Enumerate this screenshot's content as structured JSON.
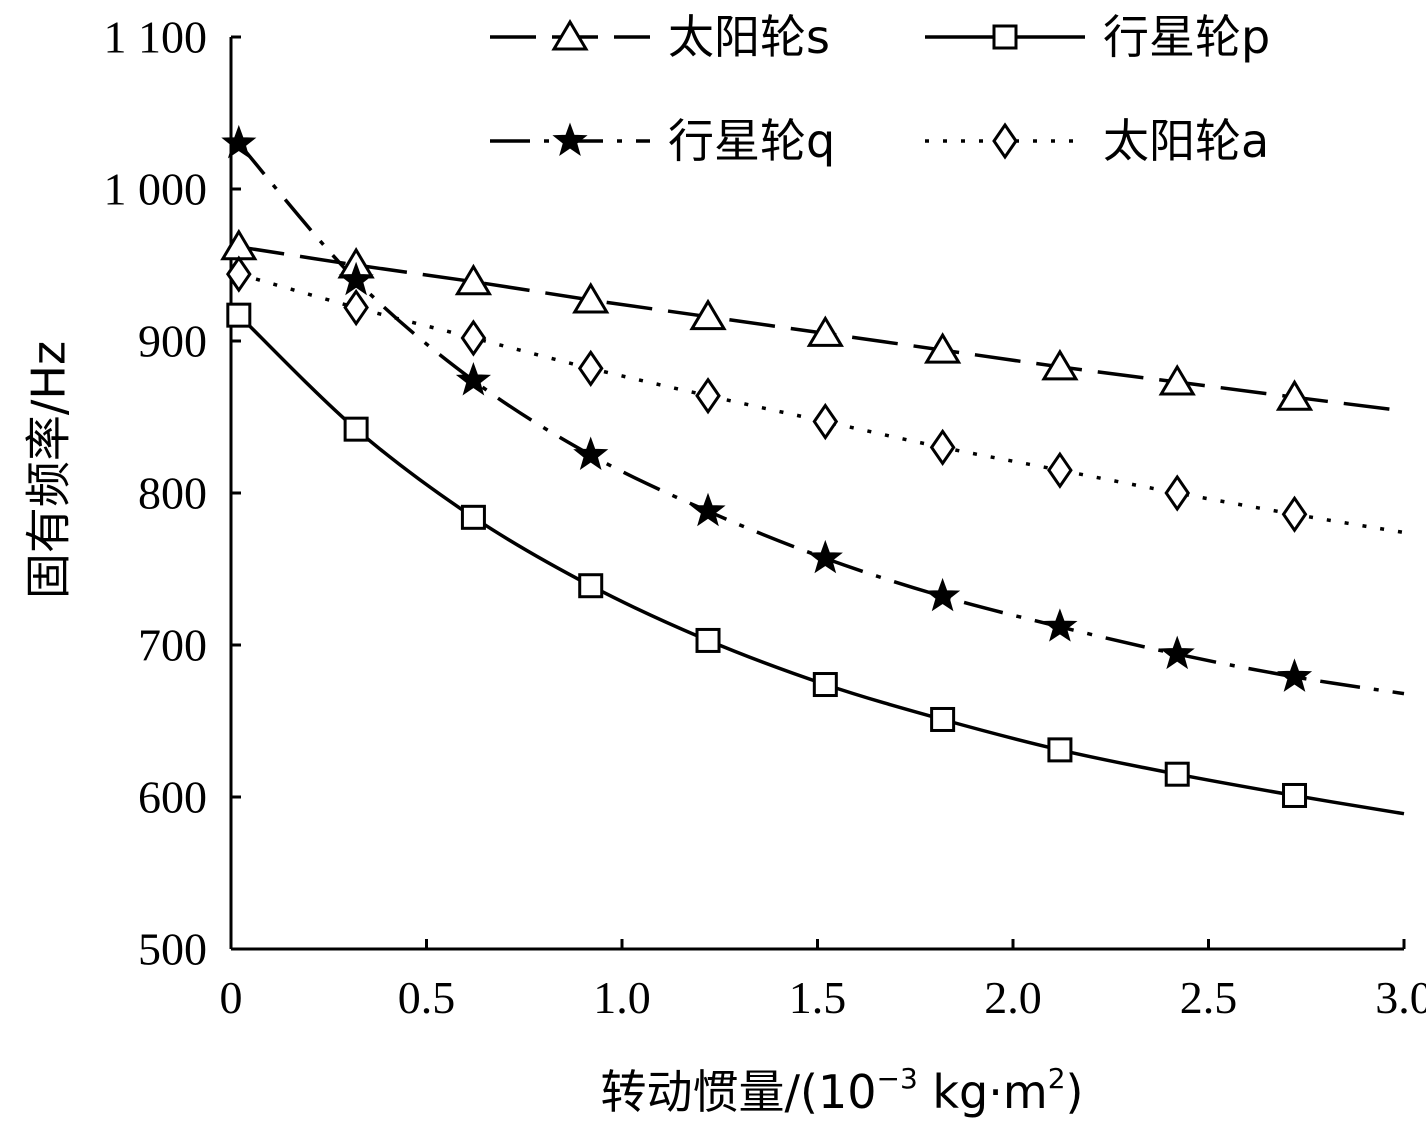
{
  "chart_data": {
    "type": "line",
    "title": "",
    "xlabel": "转动惯量/(10",
    "xlabel_sup": "−3",
    "xlabel_mid": " kg·m",
    "xlabel_sup2": "2",
    "xlabel_end": ")",
    "ylabel": "固有频率/Hz",
    "xlim": [
      0,
      3.0
    ],
    "ylim": [
      500,
      1100
    ],
    "x_ticks": [
      0,
      0.5,
      1.0,
      1.5,
      2.0,
      2.5,
      3.0
    ],
    "x_tick_labels": [
      "0",
      "0.5",
      "1.0",
      "1.5",
      "2.0",
      "2.5",
      "3.0"
    ],
    "y_ticks": [
      500,
      600,
      700,
      800,
      900,
      1000,
      1100
    ],
    "y_tick_labels": [
      "500",
      "600",
      "700",
      "800",
      "900",
      "1 000",
      "1 100"
    ],
    "legend_position": "top",
    "marker_x": [
      0.02,
      0.32,
      0.62,
      0.92,
      1.22,
      1.52,
      1.82,
      2.12,
      2.42,
      2.72
    ],
    "series": [
      {
        "name": "太阳轮s",
        "marker": "triangle",
        "line": "longdash",
        "marker_values": [
          962,
          950,
          939,
          927,
          916,
          905,
          894,
          883,
          873,
          863
        ],
        "end_value": 854
      },
      {
        "name": "行星轮p",
        "marker": "square",
        "line": "solid",
        "marker_values": [
          917,
          842,
          784,
          739,
          703,
          674,
          651,
          631,
          615,
          601
        ],
        "end_value": 589
      },
      {
        "name": "行星轮q",
        "marker": "star",
        "line": "dashdot",
        "marker_values": [
          1030,
          940,
          874,
          825,
          788,
          757,
          732,
          712,
          694,
          679
        ],
        "end_value": 668
      },
      {
        "name": "太阳轮a",
        "marker": "diamond",
        "line": "dotted",
        "marker_values": [
          944,
          922,
          902,
          882,
          864,
          847,
          830,
          815,
          800,
          786
        ],
        "end_value": 774
      }
    ]
  }
}
